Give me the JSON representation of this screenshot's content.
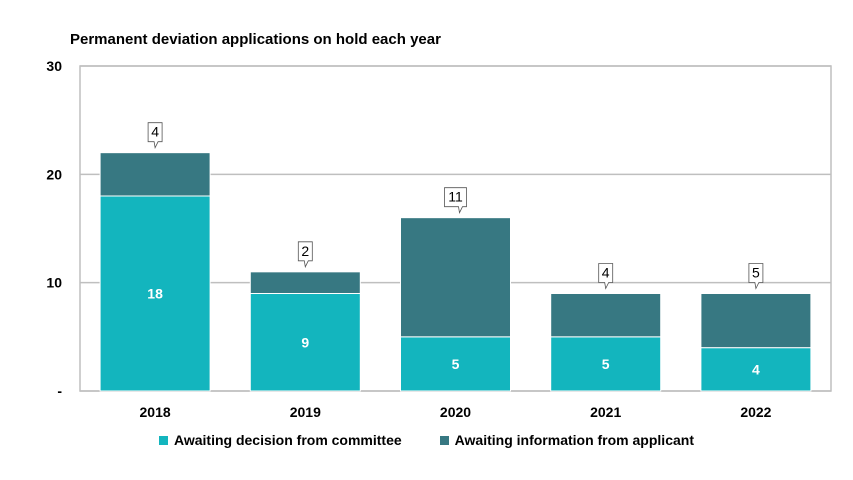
{
  "chart_data": {
    "type": "bar",
    "stacked": true,
    "title": "Permanent deviation applications on hold each year",
    "xlabel": "",
    "ylabel": "",
    "categories": [
      "2018",
      "2019",
      "2020",
      "2021",
      "2022"
    ],
    "ylim": [
      0,
      30
    ],
    "yticks": [
      0,
      10,
      20,
      30
    ],
    "ytick_labels": [
      "-",
      "10",
      "20",
      "30"
    ],
    "grid": true,
    "legend_position": "bottom",
    "series": [
      {
        "name": "Awaiting decision from committee",
        "values": [
          18,
          9,
          5,
          5,
          4
        ],
        "color": "#13b5be"
      },
      {
        "name": "Awaiting information from applicant",
        "values": [
          4,
          2,
          11,
          4,
          5
        ],
        "color": "#377882"
      }
    ]
  }
}
